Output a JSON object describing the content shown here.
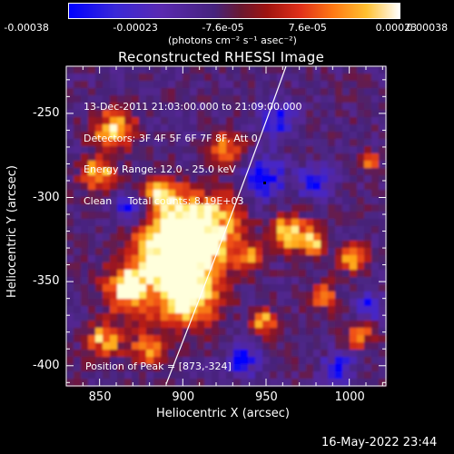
{
  "colorbar": {
    "tick_labels": [
      "-0.00038",
      "-0.00023",
      "-7.6e-05",
      "7.6e-05",
      "0.00023",
      "0.00038"
    ],
    "unit_label": "(photons cm⁻² s⁻¹ asec⁻²)",
    "range": [
      -0.00038,
      0.00038
    ]
  },
  "title": "Reconstructed RHESSI Image",
  "info": {
    "time": "13-Dec-2011 21:03:00.000 to 21:09:00.000",
    "detectors": "Detectors: 3F 4F 5F 6F 7F 8F, Att 0",
    "energy": "Energy Range: 12.0 - 25.0 keV",
    "clean": "Clean     Total counts: 8.19E+03"
  },
  "peak_text": "Position of Peak = [873,-324]",
  "axes": {
    "xlabel": "Heliocentric X (arcsec)",
    "ylabel": "Heliocentric Y (arcsec)",
    "xticks": [
      "850",
      "900",
      "950",
      "1000"
    ],
    "yticks": [
      "-250",
      "-300",
      "-350",
      "-400"
    ],
    "xlim": [
      830,
      1022
    ],
    "ylim": [
      -412,
      -222
    ]
  },
  "timestamp": "16-May-2022 23:44",
  "colors": {
    "background": "#000000",
    "colormap": [
      "#0000ff",
      "#5a28b4",
      "#46237d",
      "#8c1414",
      "#e6371e",
      "#ffa014",
      "#ffff78",
      "#ffffff"
    ]
  }
}
